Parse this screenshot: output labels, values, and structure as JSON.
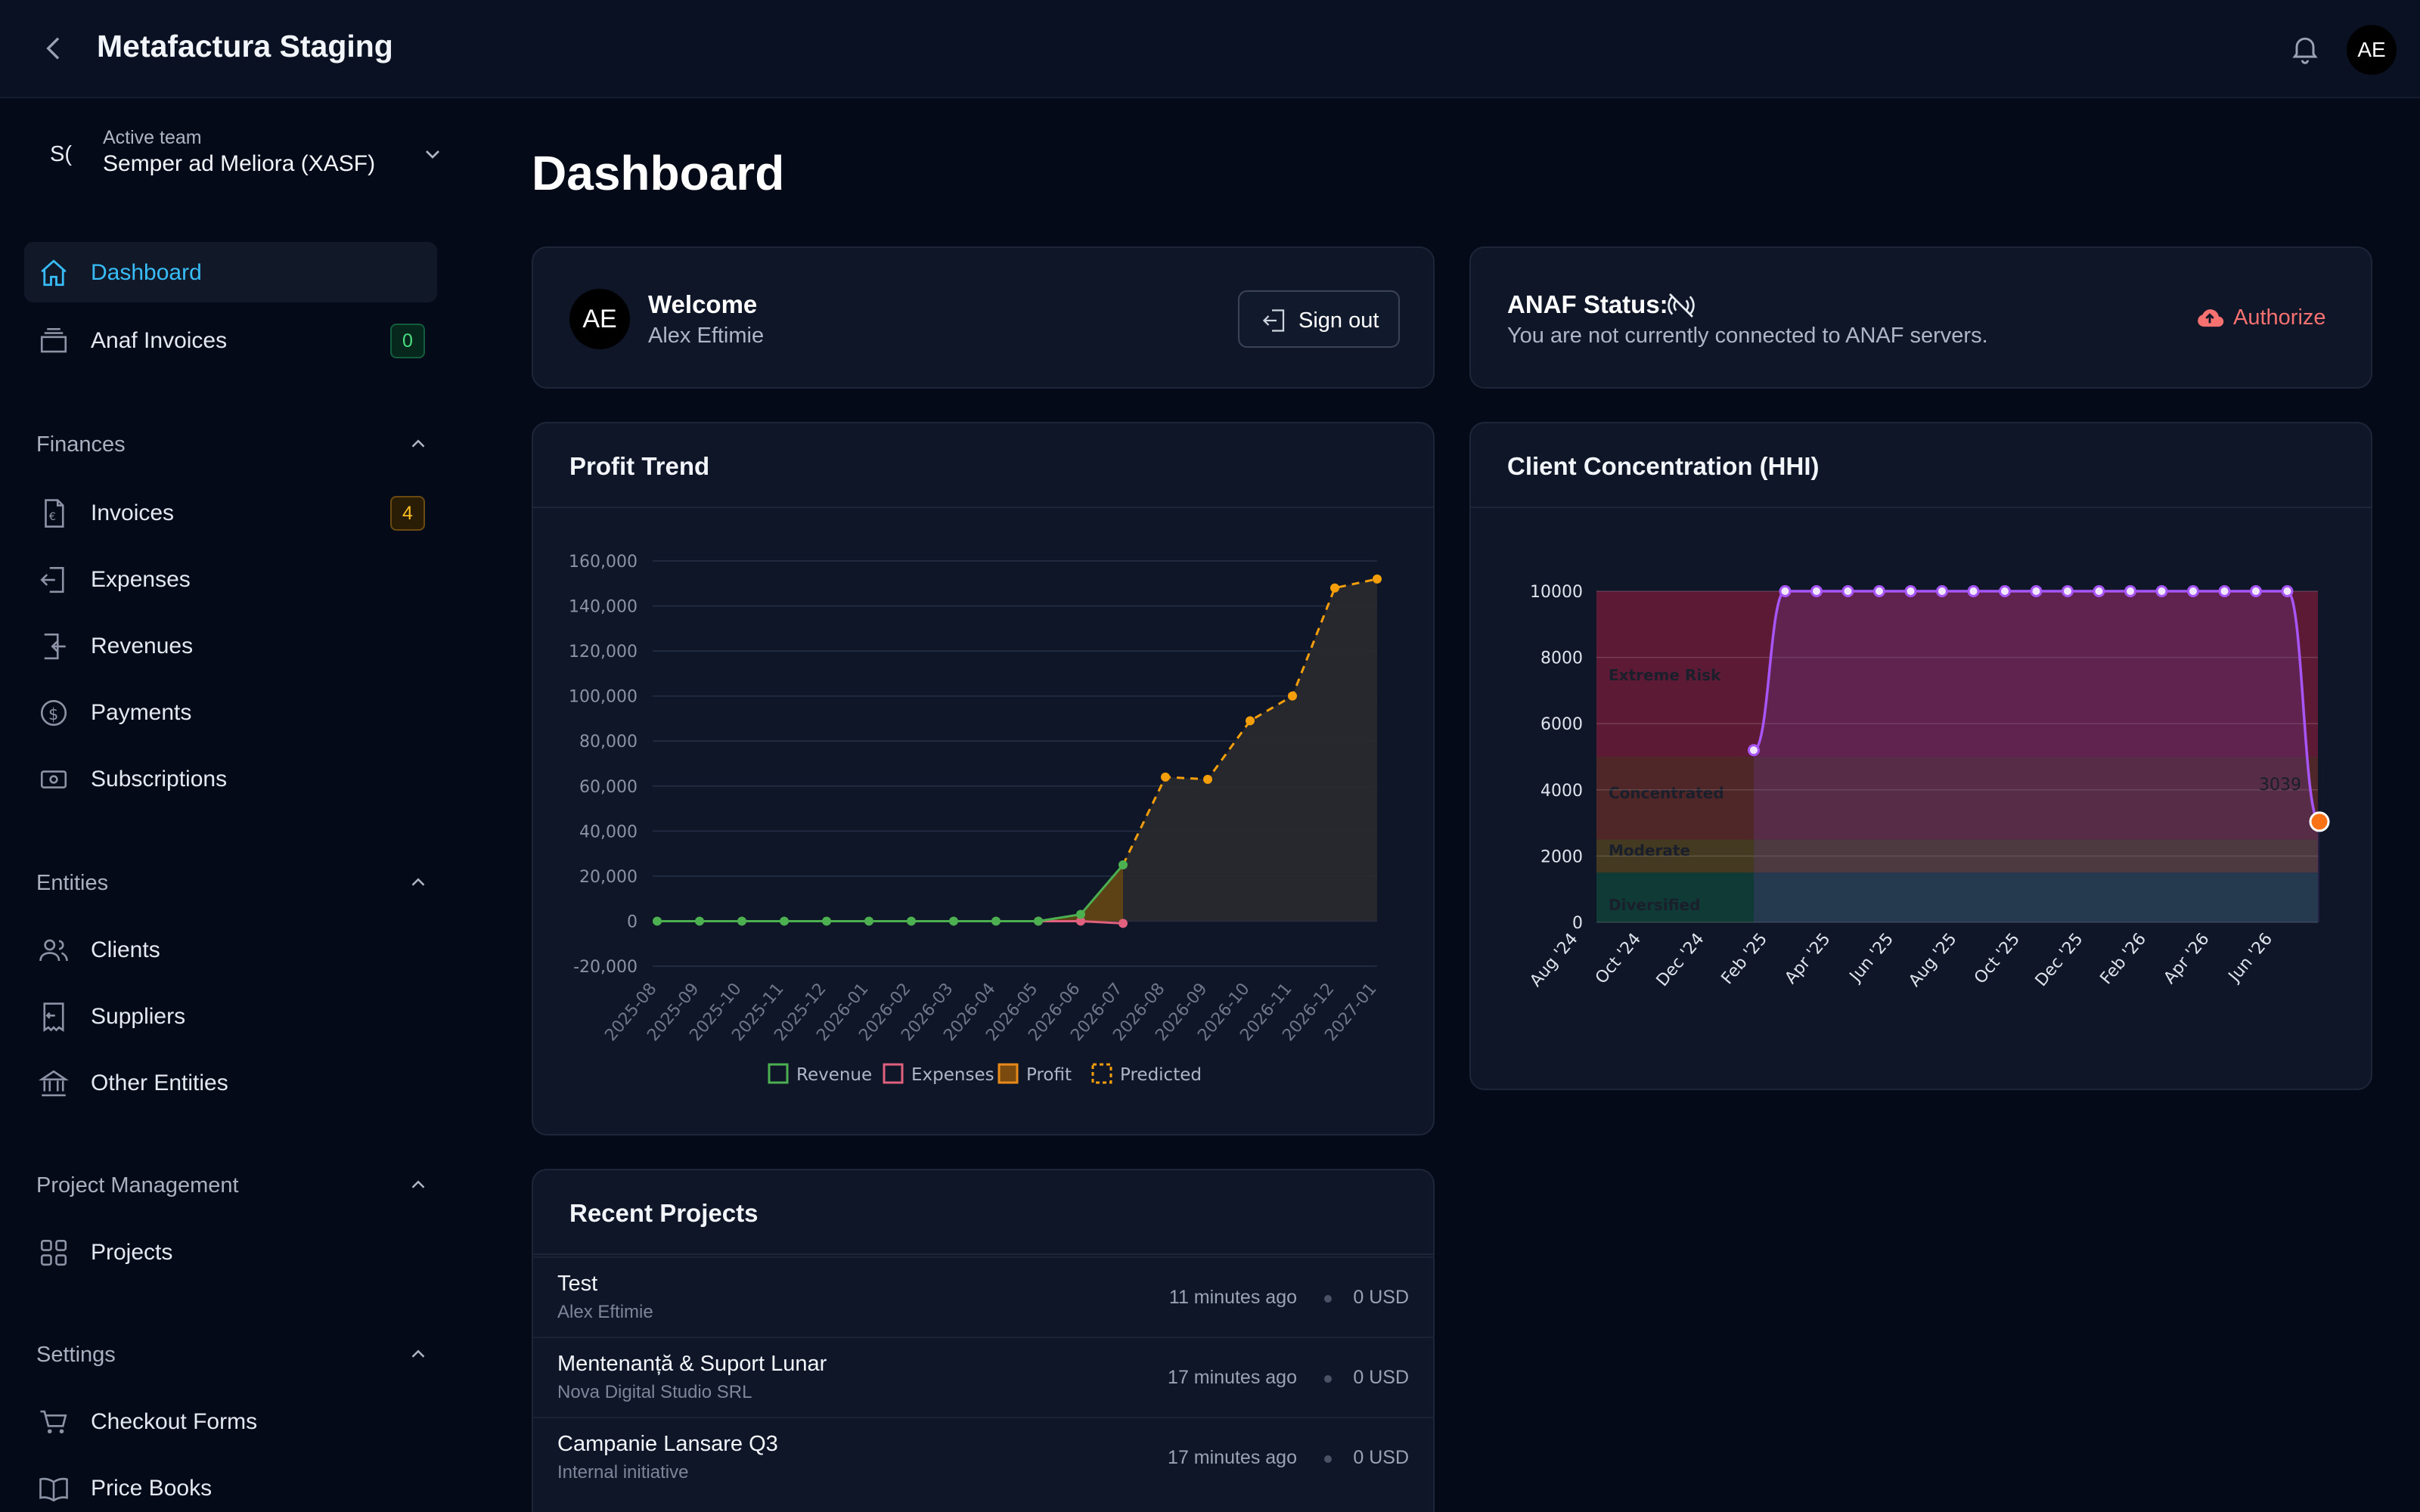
{
  "app": {
    "title": "Metafactura Staging",
    "user_initials": "AE"
  },
  "team": {
    "abbr": "S(",
    "label": "Active team",
    "name": "Semper ad Meliora (XASF)"
  },
  "nav_top": [
    {
      "label": "Dashboard",
      "icon": "home-icon",
      "active": true
    },
    {
      "label": "Anaf Invoices",
      "icon": "inbox-icon",
      "badge": "0",
      "badge_color": "#4ade80"
    }
  ],
  "sections": [
    {
      "title": "Finances",
      "items": [
        {
          "label": "Invoices",
          "icon": "invoice-icon",
          "badge": "4",
          "badge_color": "#fbbf24"
        },
        {
          "label": "Expenses",
          "icon": "expense-icon"
        },
        {
          "label": "Revenues",
          "icon": "revenue-icon"
        },
        {
          "label": "Payments",
          "icon": "dollar-icon"
        },
        {
          "label": "Subscriptions",
          "icon": "cash-icon"
        }
      ]
    },
    {
      "title": "Entities",
      "items": [
        {
          "label": "Clients",
          "icon": "users-icon"
        },
        {
          "label": "Suppliers",
          "icon": "receipt-icon"
        },
        {
          "label": "Other Entities",
          "icon": "bank-icon"
        }
      ]
    },
    {
      "title": "Project Management",
      "items": [
        {
          "label": "Projects",
          "icon": "grid-icon"
        }
      ]
    },
    {
      "title": "Settings",
      "items": [
        {
          "label": "Checkout Forms",
          "icon": "cart-icon"
        },
        {
          "label": "Price Books",
          "icon": "book-icon"
        }
      ]
    }
  ],
  "page": {
    "title": "Dashboard"
  },
  "welcome": {
    "initials": "AE",
    "title": "Welcome",
    "name": "Alex Eftimie",
    "signout_label": "Sign out"
  },
  "anaf": {
    "title": "ANAF Status:",
    "description": "You are not currently connected to ANAF servers.",
    "authorize_label": "Authorize",
    "accent": "#f87171"
  },
  "profit_card": {
    "title": "Profit Trend"
  },
  "hhi_card": {
    "title": "Client Concentration (HHI)"
  },
  "projects_card": {
    "title": "Recent Projects",
    "rows": [
      {
        "name": "Test",
        "owner": "Alex Eftimie",
        "time": "11 minutes ago",
        "amount": "0 USD"
      },
      {
        "name": "Mentenanță & Suport Lunar",
        "owner": "Nova Digital Studio SRL",
        "time": "17 minutes ago",
        "amount": "0 USD"
      },
      {
        "name": "Campanie Lansare Q3",
        "owner": "Internal initiative",
        "time": "17 minutes ago",
        "amount": "0 USD"
      }
    ]
  },
  "chart_data": [
    {
      "type": "line",
      "title": "Profit Trend",
      "categories": [
        "2025-08",
        "2025-09",
        "2025-10",
        "2025-11",
        "2025-12",
        "2026-01",
        "2026-02",
        "2026-03",
        "2026-04",
        "2026-05",
        "2026-06",
        "2026-07",
        "2026-08",
        "2026-09",
        "2026-10",
        "2026-11",
        "2026-12",
        "2027-01"
      ],
      "ylim": [
        -20000,
        160000
      ],
      "yticks": [
        "160,000",
        "140,000",
        "120,000",
        "100,000",
        "80,000",
        "60,000",
        "40,000",
        "20,000",
        "0",
        "-20,000"
      ],
      "ytick_values": [
        160000,
        140000,
        120000,
        100000,
        80000,
        60000,
        40000,
        20000,
        0,
        -20000
      ],
      "grid": true,
      "legend_position": "bottom",
      "series": [
        {
          "name": "Revenue",
          "color": "#4caf50",
          "values": [
            0,
            0,
            0,
            0,
            0,
            0,
            0,
            0,
            0,
            0,
            3000,
            25000,
            null,
            null,
            null,
            null,
            null,
            null
          ]
        },
        {
          "name": "Expenses",
          "color": "#e0607e",
          "values": [
            null,
            null,
            null,
            null,
            null,
            null,
            null,
            null,
            null,
            0,
            0,
            -1000,
            null,
            null,
            null,
            null,
            null,
            null
          ]
        },
        {
          "name": "Profit",
          "color": "#e88a1a",
          "values": [
            0,
            0,
            0,
            0,
            0,
            0,
            0,
            0,
            0,
            0,
            3000,
            25000,
            null,
            null,
            null,
            null,
            null,
            null
          ]
        },
        {
          "name": "Predicted",
          "color": "#f59e0b",
          "values": [
            null,
            null,
            null,
            null,
            null,
            null,
            null,
            null,
            null,
            null,
            null,
            25000,
            64000,
            63000,
            89000,
            100000,
            148000,
            152000
          ]
        }
      ]
    },
    {
      "type": "line",
      "title": "Client Concentration (HHI)",
      "categories": [
        "Aug '24",
        "Oct '24",
        "Dec '24",
        "Feb '25",
        "Apr '25",
        "Jun '25",
        "Aug '25",
        "Oct '25",
        "Dec '25",
        "Feb '26",
        "Apr '26",
        "Jun '26"
      ],
      "x": [
        "2025-01",
        "2025-02",
        "2025-03",
        "2025-04",
        "2025-05",
        "2025-06",
        "2025-07",
        "2025-08",
        "2025-09",
        "2025-10",
        "2025-11",
        "2025-12",
        "2026-01",
        "2026-02",
        "2026-03",
        "2026-04",
        "2026-05",
        "2026-06",
        "2026-07"
      ],
      "values": [
        5200,
        10000,
        10000,
        10000,
        10000,
        10000,
        10000,
        10000,
        10000,
        10000,
        10000,
        10000,
        10000,
        10000,
        10000,
        10000,
        10000,
        10000,
        3039
      ],
      "ylim": [
        0,
        10000
      ],
      "yticks": [
        "10000",
        "8000",
        "6000",
        "4000",
        "2000",
        "0"
      ],
      "ytick_values": [
        10000,
        8000,
        6000,
        4000,
        2000,
        0
      ],
      "bands": [
        {
          "label": "Extreme Risk",
          "from": 5000,
          "to": 10000,
          "color": "#7f1d3a"
        },
        {
          "label": "Concentrated",
          "from": 2500,
          "to": 5000,
          "color": "#6b2f2a"
        },
        {
          "label": "Moderate",
          "from": 1500,
          "to": 2500,
          "color": "#5a4a1e"
        },
        {
          "label": "Diversified",
          "from": 0,
          "to": 1500,
          "color": "#0f4a3a"
        }
      ],
      "annotations": [
        "3039"
      ],
      "line_color": "#a855f7",
      "grid": true
    }
  ]
}
